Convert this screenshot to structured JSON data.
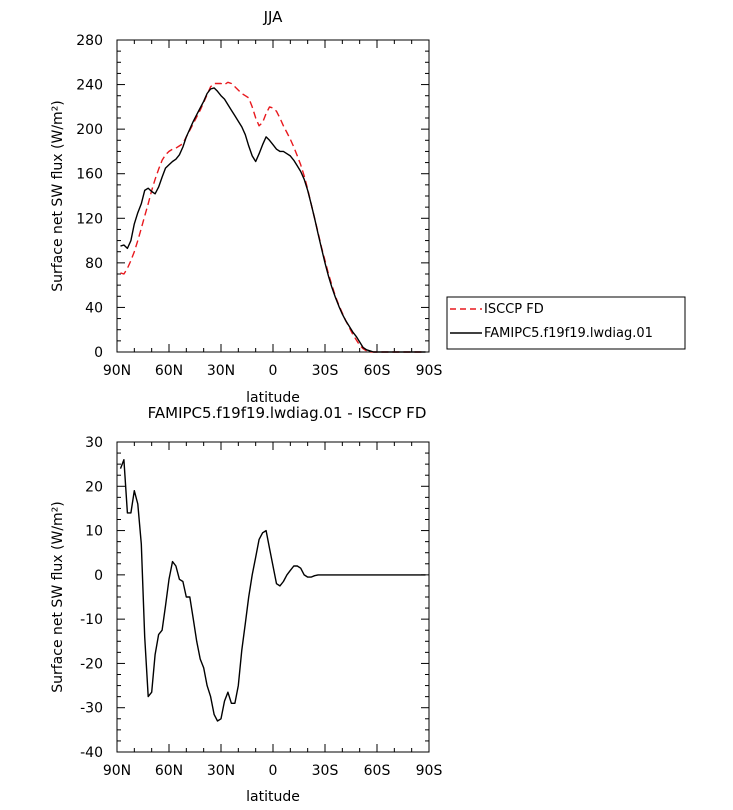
{
  "chart_data": [
    {
      "type": "line",
      "title": "JJA",
      "xlabel": "latitude",
      "ylabel": "Surface net SW flux (W/m²)",
      "xlim": [
        90,
        -90
      ],
      "ylim": [
        0,
        280
      ],
      "x_ticks": [
        {
          "value": 90,
          "label": "90N"
        },
        {
          "value": 60,
          "label": "60N"
        },
        {
          "value": 30,
          "label": "30N"
        },
        {
          "value": 0,
          "label": "0"
        },
        {
          "value": -30,
          "label": "30S"
        },
        {
          "value": -60,
          "label": "60S"
        },
        {
          "value": -90,
          "label": "90S"
        }
      ],
      "y_ticks": [
        0,
        40,
        80,
        120,
        160,
        200,
        240,
        280
      ],
      "legend": {
        "placement": "right"
      },
      "series": [
        {
          "name": "ISCCP FD",
          "color": "#e8191e",
          "dash": "dashed",
          "x": [
            88,
            86,
            84,
            82,
            80,
            78,
            76,
            74,
            72,
            70,
            68,
            66,
            64,
            62,
            60,
            58,
            56,
            54,
            52,
            50,
            48,
            46,
            44,
            42,
            40,
            38,
            36,
            34,
            32,
            30,
            28,
            26,
            24,
            22,
            20,
            18,
            16,
            14,
            12,
            10,
            8,
            6,
            4,
            2,
            0,
            -2,
            -4,
            -6,
            -8,
            -10,
            -12,
            -14,
            -16,
            -18,
            -20,
            -22,
            -24,
            -26,
            -28,
            -30,
            -32,
            -34,
            -36,
            -38,
            -40,
            -42,
            -44,
            -46,
            -48,
            -50,
            -52,
            -54,
            -56,
            -58,
            -60,
            -62,
            -64,
            -66,
            -68,
            -70,
            -72,
            -74,
            -76,
            -78,
            -80,
            -82,
            -84,
            -86,
            -88
          ],
          "y": [
            71,
            70,
            75,
            82,
            90,
            100,
            111,
            122,
            133,
            145,
            155,
            164,
            172,
            177,
            180,
            182,
            183,
            185,
            187,
            193,
            199,
            205,
            211,
            217,
            224,
            231,
            238,
            241,
            241,
            241,
            240,
            242,
            241,
            238,
            235,
            232,
            230,
            228,
            220,
            210,
            203,
            206,
            214,
            220,
            219,
            216,
            210,
            203,
            197,
            191,
            184,
            176,
            168,
            158,
            146,
            133,
            120,
            107,
            94,
            82,
            70,
            60,
            50,
            42,
            35,
            28,
            22,
            16,
            11,
            6,
            3,
            1,
            0,
            0,
            0,
            0,
            0,
            0,
            0,
            0,
            0,
            0,
            0,
            0,
            0,
            0,
            0,
            0,
            0
          ]
        },
        {
          "name": "FAMIPC5.f19f19.lwdiag.01",
          "color": "#000000",
          "dash": "solid",
          "x": [
            88,
            86,
            84,
            82,
            80,
            78,
            76,
            74,
            72,
            70,
            68,
            66,
            64,
            62,
            60,
            58,
            56,
            54,
            52,
            50,
            48,
            46,
            44,
            42,
            40,
            38,
            36,
            34,
            32,
            30,
            28,
            26,
            24,
            22,
            20,
            18,
            16,
            14,
            12,
            10,
            8,
            6,
            4,
            2,
            0,
            -2,
            -4,
            -6,
            -8,
            -10,
            -12,
            -14,
            -16,
            -18,
            -20,
            -22,
            -24,
            -26,
            -28,
            -30,
            -32,
            -34,
            -36,
            -38,
            -40,
            -42,
            -44,
            -46,
            -48,
            -50,
            -52,
            -54,
            -56,
            -58,
            -60,
            -62,
            -64,
            -66,
            -68,
            -70,
            -72,
            -74,
            -76,
            -78,
            -80,
            -82,
            -84,
            -86,
            -88
          ],
          "y": [
            95,
            96,
            93,
            100,
            115,
            125,
            133,
            145,
            147,
            144,
            142,
            148,
            157,
            165,
            168,
            171,
            173,
            177,
            184,
            193,
            200,
            207,
            213,
            219,
            225,
            232,
            236,
            237,
            234,
            230,
            227,
            222,
            217,
            212,
            207,
            202,
            195,
            185,
            176,
            171,
            178,
            186,
            193,
            190,
            186,
            182,
            180,
            180,
            178,
            176,
            172,
            167,
            162,
            155,
            145,
            133,
            120,
            106,
            93,
            80,
            68,
            58,
            49,
            41,
            34,
            28,
            23,
            18,
            14,
            9,
            4,
            2,
            1,
            0,
            0,
            0,
            0,
            0,
            0,
            0,
            0,
            0,
            0,
            0,
            0,
            0,
            0,
            0,
            0
          ]
        }
      ]
    },
    {
      "type": "line",
      "title": "FAMIPC5.f19f19.lwdiag.01 - ISCCP FD",
      "xlabel": "latitude",
      "ylabel": "Surface net SW flux (W/m²)",
      "xlim": [
        90,
        -90
      ],
      "ylim": [
        -40,
        30
      ],
      "x_ticks": [
        {
          "value": 90,
          "label": "90N"
        },
        {
          "value": 60,
          "label": "60N"
        },
        {
          "value": 30,
          "label": "30N"
        },
        {
          "value": 0,
          "label": "0"
        },
        {
          "value": -30,
          "label": "30S"
        },
        {
          "value": -60,
          "label": "60S"
        },
        {
          "value": -90,
          "label": "90S"
        }
      ],
      "y_ticks": [
        -40,
        -30,
        -20,
        -10,
        0,
        10,
        20,
        30
      ],
      "series": [
        {
          "color": "#000000",
          "dash": "solid",
          "x": [
            88,
            86,
            84,
            82,
            80,
            78,
            76,
            74,
            72,
            70,
            68,
            66,
            64,
            62,
            60,
            58,
            56,
            54,
            52,
            50,
            48,
            46,
            44,
            42,
            40,
            38,
            36,
            34,
            32,
            30,
            28,
            26,
            24,
            22,
            20,
            18,
            16,
            14,
            12,
            10,
            8,
            6,
            4,
            2,
            0,
            -2,
            -4,
            -6,
            -8,
            -10,
            -12,
            -14,
            -16,
            -18,
            -20,
            -22,
            -24,
            -26,
            -28,
            -30,
            -32,
            -34,
            -36,
            -38,
            -40,
            -42,
            -44,
            -46,
            -48,
            -50,
            -52,
            -54,
            -56,
            -58,
            -60,
            -62,
            -64,
            -66,
            -68,
            -70,
            -72,
            -74,
            -76,
            -78,
            -80,
            -82,
            -84,
            -86,
            -88
          ],
          "y": [
            24,
            26,
            14,
            14,
            19,
            16,
            7,
            -14,
            -27.5,
            -26.5,
            -18,
            -13.5,
            -12.5,
            -7,
            -1,
            3,
            2,
            -1,
            -1.5,
            -5,
            -5,
            -10,
            -15,
            -19,
            -21,
            -25,
            -27.5,
            -31.5,
            -33,
            -32.5,
            -28.5,
            -26.5,
            -29,
            -29,
            -25,
            -17,
            -11,
            -5,
            0,
            4,
            8,
            9.5,
            10,
            6,
            2,
            -2,
            -2.5,
            -1.5,
            0,
            1,
            2,
            2,
            1.5,
            0,
            -0.5,
            -0.5,
            -0.2,
            0,
            0,
            0,
            0,
            0,
            0,
            0,
            0,
            0,
            0,
            0,
            0,
            0,
            0,
            0,
            0,
            0,
            0,
            0,
            0,
            0,
            0,
            0,
            0,
            0,
            0,
            0,
            0,
            0,
            0,
            0,
            0
          ]
        }
      ]
    }
  ]
}
